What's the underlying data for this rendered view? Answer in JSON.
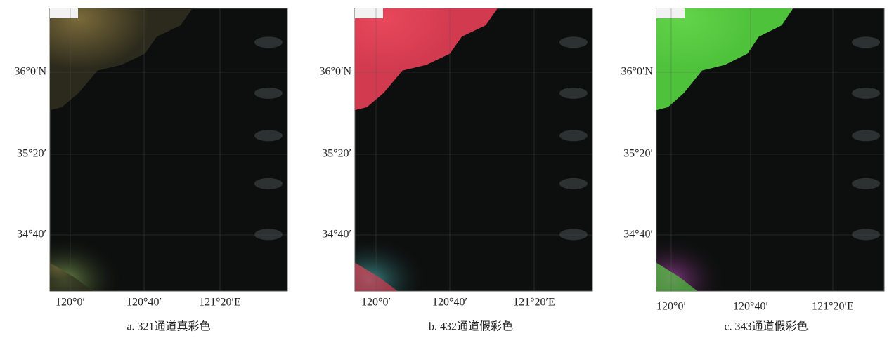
{
  "panels": [
    {
      "caption": "a.  321通道真彩色",
      "lat_labels": [
        "36°0′N",
        "35°20′",
        "34°40′"
      ],
      "lon_labels": [
        "120°0′",
        "120°40′",
        "121°20′E"
      ]
    },
    {
      "caption": "b.  432通道假彩色",
      "lat_labels": [
        "36°0′N",
        "35°20′",
        "34°40′"
      ],
      "lon_labels": [
        "120°0′",
        "120°40′",
        "121°20′E"
      ]
    },
    {
      "caption": "c.  343通道假彩色",
      "lat_labels": [
        "36°0′N",
        "35°20′",
        "34°40′"
      ],
      "lon_labels": [
        "120°0′",
        "120°40′",
        "121°20′E"
      ]
    }
  ]
}
